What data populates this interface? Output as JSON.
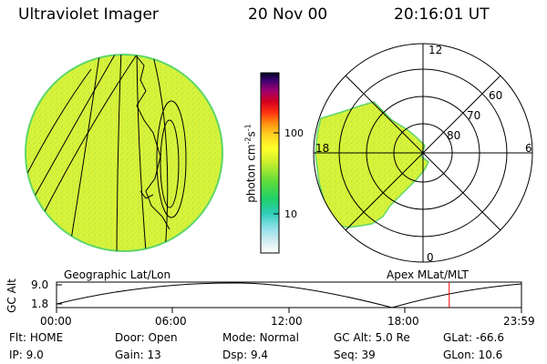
{
  "header": {
    "instrument": "Ultraviolet Imager",
    "date": "20 Nov 00",
    "time": "20:16:01 UT"
  },
  "colors": {
    "aurora_fill": "#d8f23a",
    "aurora_speckle": "#9be04a",
    "limb_edge": "#5fd66a",
    "time_marker": "#ff0000",
    "background": "#ffffff",
    "ink": "#000000"
  },
  "geo_panel": {
    "label": "Geographic Lat/Lon"
  },
  "polar_panel": {
    "label": "Apex MLat/MLT",
    "mlt_labels": {
      "top": "12",
      "left": "18",
      "right": "6",
      "bottom": "0"
    },
    "mlat_labels": [
      "60",
      "70",
      "80"
    ]
  },
  "colorbar": {
    "unit_label": "photon cm",
    "unit_exp1": "-2",
    "unit_mid": "s",
    "unit_exp2": "-1",
    "ticks": [
      "100",
      "10"
    ]
  },
  "altitude_plot": {
    "ylabel": "GC Alt",
    "y_ticks": [
      "9.0",
      "1.8"
    ],
    "x_ticks": [
      "00:00",
      "06:00",
      "12:00",
      "18:00",
      "23:59"
    ],
    "current_time_hours": 20.27
  },
  "status": {
    "row1": [
      {
        "label": "Flt:",
        "value": "HOME"
      },
      {
        "label": "Door:",
        "value": "Open"
      },
      {
        "label": "Mode:",
        "value": "Normal"
      },
      {
        "label": "GC Alt:",
        "value": "5.0 Re"
      },
      {
        "label": "GLat:",
        "value": "-66.6"
      }
    ],
    "row2": [
      {
        "label": "IP:",
        "value": "9.0"
      },
      {
        "label": "Gain:",
        "value": "13"
      },
      {
        "label": "Dsp:",
        "value": "9.4"
      },
      {
        "label": "Seq:",
        "value": "39"
      },
      {
        "label": "GLon:",
        "value": "10.6"
      }
    ]
  }
}
